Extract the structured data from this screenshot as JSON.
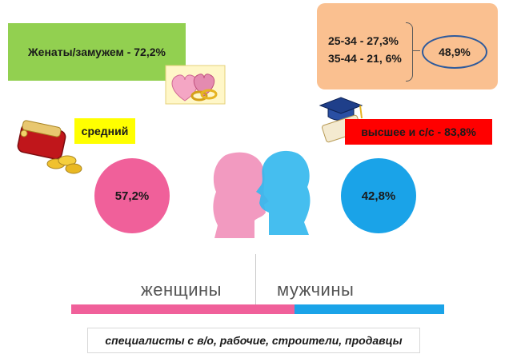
{
  "married": {
    "label": "Женаты/замужем - 72,2%"
  },
  "age_groups": {
    "line1": "25-34 - 27,3%",
    "line2": "35-44 - 21, 6%",
    "total": "48,9%"
  },
  "income": {
    "label": "средний"
  },
  "education": {
    "label": "высшее и с/с - 83,8%"
  },
  "women": {
    "percent": "57,2%",
    "label": "женщины"
  },
  "men": {
    "percent": "42,8%",
    "label": "мужчины"
  },
  "occupations": {
    "label": "специалисты с в/о, рабочие, строители, продавцы"
  },
  "colors": {
    "women": "#f0609a",
    "men": "#1aa3e8",
    "married_box": "#92d050",
    "age_box": "#fac090",
    "income_tag": "#ffff00",
    "education_tag": "#ff0000"
  },
  "icons": [
    "hearts-rings-icon",
    "wallet-coins-icon",
    "graduation-cap-diploma-icon",
    "silhouette-heads-icon"
  ]
}
